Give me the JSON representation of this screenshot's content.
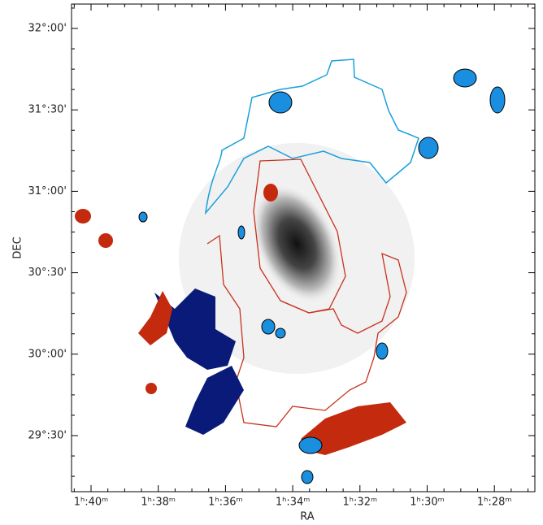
{
  "axes": {
    "x_label": "RA",
    "y_label": "DEC",
    "x_tick_labels": [
      "1ʰ:40ᵐ",
      "1ʰ:38ᵐ",
      "1ʰ:36ᵐ",
      "1ʰ:34ᵐ",
      "1ʰ:32ᵐ",
      "1ʰ:30ᵐ",
      "1ʰ:28ᵐ"
    ],
    "y_tick_labels": [
      "32°:00'",
      "31°:30'",
      "31°:00'",
      "30°:30'",
      "30°:00'",
      "29°:30'"
    ]
  }
}
